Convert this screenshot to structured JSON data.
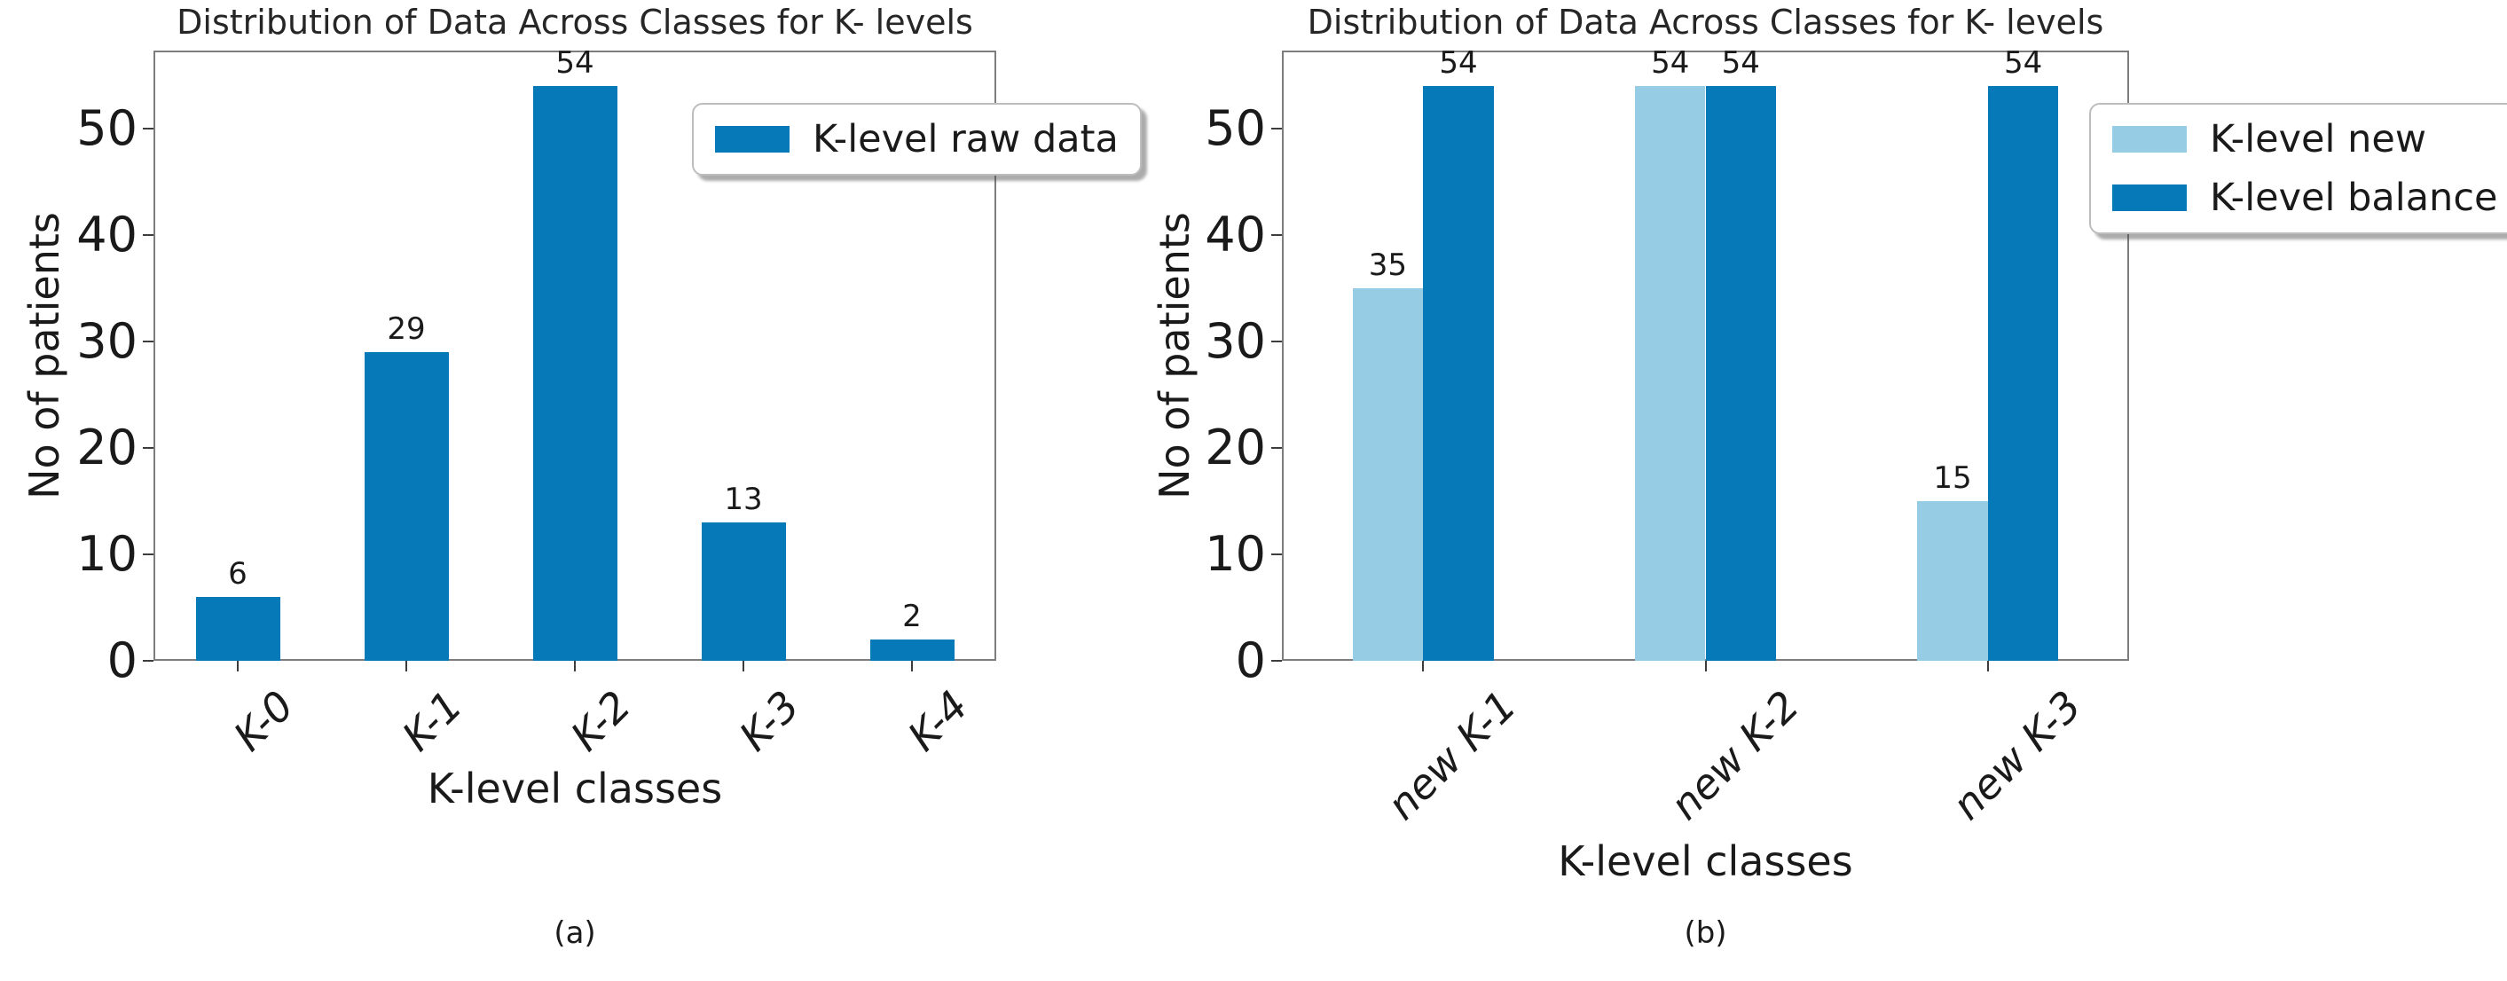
{
  "colors": {
    "dark_blue": "#0679b9",
    "light_blue": "#96cde4",
    "spine": "#7d7d7d",
    "tick": "#3c3c3c",
    "text": "#1a1a1a",
    "background": "#ffffff"
  },
  "chart_data": [
    {
      "type": "bar",
      "title": "Distribution of Data Across Classes for K- levels",
      "xlabel": "K-level classes",
      "ylabel": "No of patients",
      "caption": "(a)",
      "categories": [
        "K-0",
        "K-1",
        "K-2",
        "K-3",
        "K-4"
      ],
      "series": [
        {
          "name": "K-level raw data",
          "color": "dark_blue",
          "values": [
            6,
            29,
            54,
            13,
            2
          ]
        }
      ],
      "yticks": [
        0,
        10,
        20,
        30,
        40,
        50
      ],
      "ylim": [
        0,
        57.33
      ],
      "bar_value_labels": true,
      "grid": false,
      "legend_position": "upper right, overflowing right spine"
    },
    {
      "type": "bar",
      "title": "Distribution of Data Across Classes for K- levels",
      "xlabel": "K-level classes",
      "ylabel": "No of patients",
      "caption": "(b)",
      "categories": [
        "new K-1",
        "new K-2",
        "new K-3"
      ],
      "series": [
        {
          "name": "K-level new",
          "color": "light_blue",
          "values": [
            35,
            54,
            15
          ]
        },
        {
          "name": "K-level balance",
          "color": "dark_blue",
          "values": [
            54,
            54,
            54
          ]
        }
      ],
      "yticks": [
        0,
        10,
        20,
        30,
        40,
        50
      ],
      "ylim": [
        0,
        57.33
      ],
      "bar_value_labels": true,
      "grid": false,
      "legend_position": "upper right, overflowing right spine"
    }
  ]
}
